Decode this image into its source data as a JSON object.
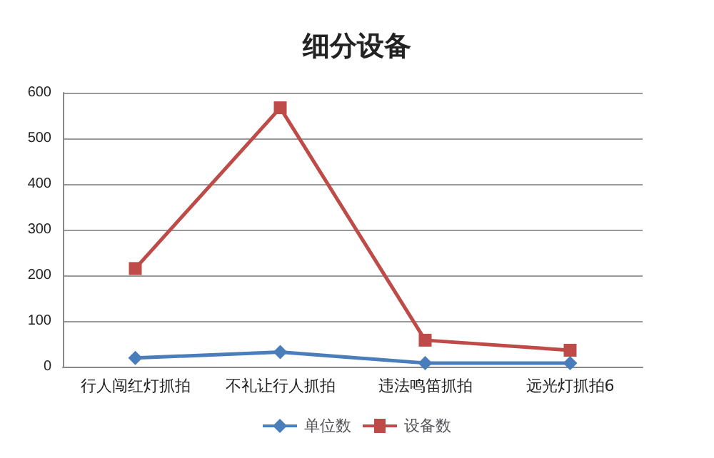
{
  "chart_data": {
    "type": "line",
    "title": "细分设备",
    "categories": [
      "行人闯红灯抓拍",
      "不礼让行人抓拍",
      "违法鸣笛抓拍",
      "远光灯抓拍6"
    ],
    "series": [
      {
        "name": "单位数",
        "color": "#4a7ebb",
        "values": [
          19,
          32,
          8,
          8
        ],
        "marker": "diamond"
      },
      {
        "name": "设备数",
        "color": "#be4b48",
        "values": [
          215,
          567,
          58,
          36
        ],
        "marker": "square"
      }
    ],
    "ylim": [
      0,
      600
    ],
    "yticks": [
      0,
      100,
      200,
      300,
      400,
      500,
      600
    ],
    "grid": "y",
    "legend": "bottom"
  }
}
